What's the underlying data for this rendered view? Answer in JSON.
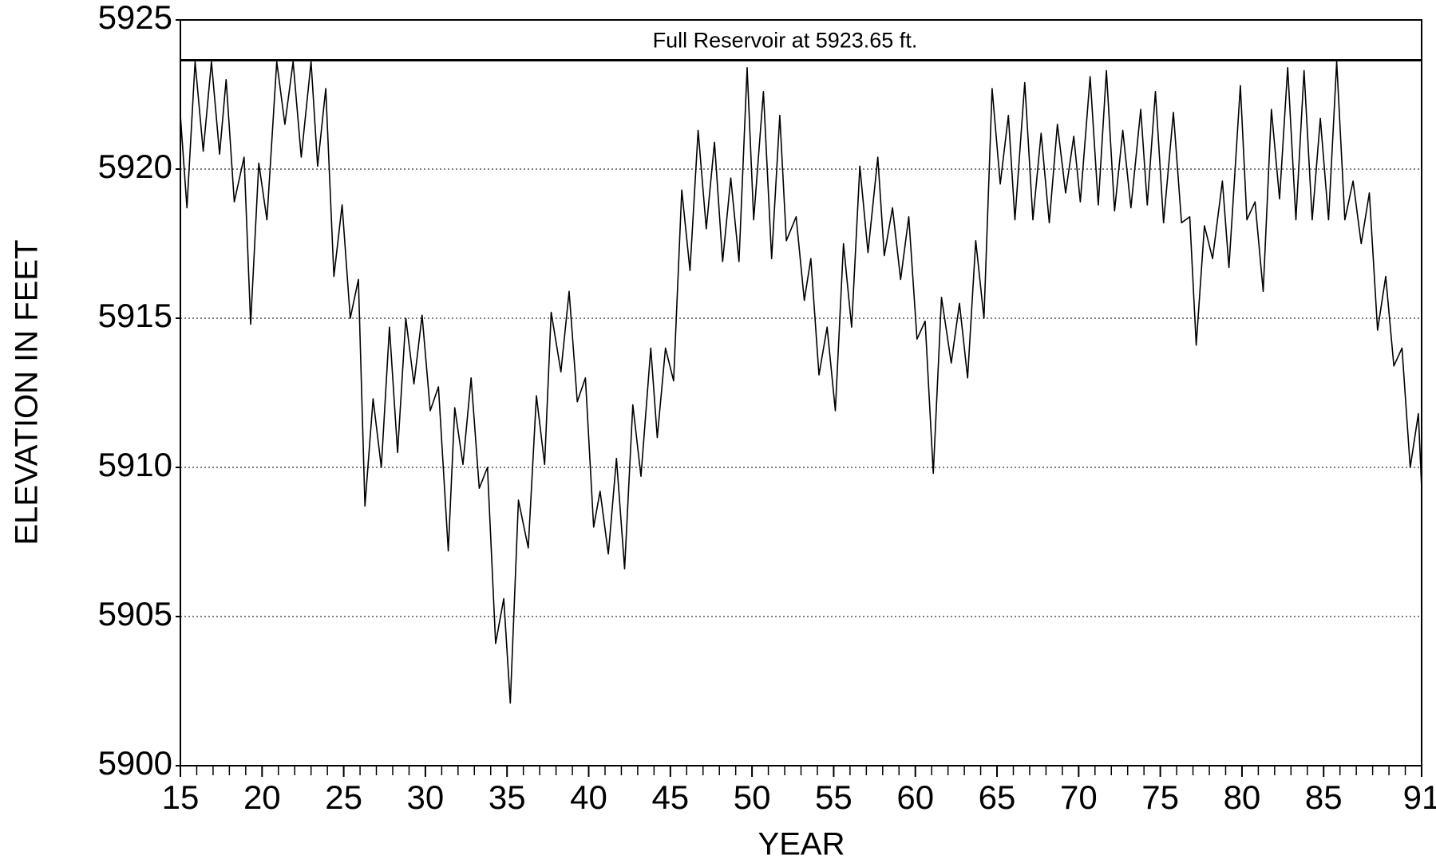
{
  "chart_data": {
    "type": "line",
    "xlabel": "YEAR",
    "ylabel": "ELEVATION IN FEET",
    "reference_line": {
      "value": 5923.65,
      "label": "Full Reservoir at 5923.65 ft."
    },
    "color": "#000000",
    "xlim": [
      15,
      91
    ],
    "ylim": [
      5900,
      5925
    ],
    "xticks": [
      15,
      20,
      25,
      30,
      35,
      40,
      45,
      50,
      55,
      60,
      65,
      70,
      75,
      80,
      85,
      91
    ],
    "xminor_ticks": [
      15,
      16,
      17,
      18,
      19,
      20,
      21,
      22,
      23,
      24,
      25,
      26,
      27,
      28,
      29,
      30,
      31,
      32,
      33,
      34,
      35,
      36,
      37,
      38,
      39,
      40,
      41,
      42,
      43,
      44,
      45,
      46,
      47,
      48,
      49,
      50,
      51,
      52,
      53,
      54,
      55,
      56,
      57,
      58,
      59,
      60,
      61,
      62,
      63,
      64,
      65,
      66,
      67,
      68,
      69,
      70,
      71,
      72,
      73,
      74,
      75,
      76,
      77,
      78,
      79,
      80,
      81,
      82,
      83,
      84,
      85,
      86,
      87,
      88,
      89,
      90,
      91
    ],
    "yticks": [
      5900,
      5905,
      5910,
      5915,
      5920,
      5925
    ],
    "grid": true,
    "x": [
      15.0,
      15.4,
      15.9,
      16.4,
      16.9,
      17.4,
      17.8,
      18.3,
      18.9,
      19.3,
      19.8,
      20.3,
      20.9,
      21.4,
      21.9,
      22.4,
      23.0,
      23.4,
      23.9,
      24.4,
      24.9,
      25.4,
      25.9,
      26.3,
      26.8,
      27.3,
      27.8,
      28.3,
      28.8,
      29.3,
      29.8,
      30.3,
      30.8,
      31.4,
      31.8,
      32.3,
      32.8,
      33.3,
      33.8,
      34.3,
      34.8,
      35.2,
      35.7,
      36.3,
      36.8,
      37.3,
      37.7,
      38.3,
      38.8,
      39.3,
      39.8,
      40.3,
      40.7,
      41.2,
      41.7,
      42.2,
      42.7,
      43.2,
      43.8,
      44.2,
      44.7,
      45.2,
      45.7,
      46.2,
      46.7,
      47.2,
      47.7,
      48.2,
      48.7,
      49.2,
      49.7,
      50.1,
      50.7,
      51.2,
      51.7,
      52.1,
      52.7,
      53.2,
      53.6,
      54.1,
      54.6,
      55.1,
      55.6,
      56.1,
      56.6,
      57.1,
      57.7,
      58.1,
      58.6,
      59.1,
      59.6,
      60.1,
      60.6,
      61.1,
      61.6,
      62.2,
      62.7,
      63.2,
      63.7,
      64.2,
      64.7,
      65.2,
      65.7,
      66.1,
      66.7,
      67.2,
      67.7,
      68.2,
      68.7,
      69.2,
      69.7,
      70.1,
      70.7,
      71.2,
      71.7,
      72.2,
      72.7,
      73.2,
      73.8,
      74.2,
      74.7,
      75.2,
      75.8,
      76.3,
      76.8,
      77.2,
      77.7,
      78.2,
      78.8,
      79.2,
      79.9,
      80.3,
      80.8,
      81.3,
      81.8,
      82.3,
      82.8,
      83.3,
      83.8,
      84.3,
      84.8,
      85.3,
      85.8,
      86.3,
      86.8,
      87.3,
      87.8,
      88.3,
      88.8,
      89.3,
      89.8,
      90.3,
      90.8,
      91.0
    ],
    "values": [
      5921.8,
      5918.7,
      5923.6,
      5920.6,
      5923.6,
      5920.5,
      5923.0,
      5918.9,
      5920.4,
      5914.8,
      5920.2,
      5918.3,
      5923.6,
      5921.5,
      5923.6,
      5920.4,
      5923.6,
      5920.1,
      5922.7,
      5916.4,
      5918.8,
      5915.0,
      5916.3,
      5908.7,
      5912.3,
      5910.0,
      5914.7,
      5910.5,
      5915.0,
      5912.8,
      5915.1,
      5911.9,
      5912.7,
      5907.2,
      5912.0,
      5910.1,
      5913.0,
      5909.3,
      5910.0,
      5904.1,
      5905.6,
      5902.1,
      5908.9,
      5907.3,
      5912.4,
      5910.1,
      5915.2,
      5913.2,
      5915.9,
      5912.2,
      5913.0,
      5908.0,
      5909.2,
      5907.1,
      5910.3,
      5906.6,
      5912.1,
      5909.7,
      5914.0,
      5911.0,
      5914.0,
      5912.9,
      5919.3,
      5916.6,
      5921.3,
      5918.0,
      5920.9,
      5916.9,
      5919.7,
      5916.9,
      5923.4,
      5918.3,
      5922.6,
      5917.0,
      5921.8,
      5917.6,
      5918.4,
      5915.6,
      5917.0,
      5913.1,
      5914.7,
      5911.9,
      5917.5,
      5914.7,
      5920.1,
      5917.2,
      5920.4,
      5917.1,
      5918.7,
      5916.3,
      5918.4,
      5914.3,
      5914.9,
      5909.8,
      5915.7,
      5913.5,
      5915.5,
      5913.0,
      5917.6,
      5915.0,
      5922.7,
      5919.5,
      5921.8,
      5918.3,
      5922.9,
      5918.3,
      5921.2,
      5918.2,
      5921.5,
      5919.2,
      5921.1,
      5918.9,
      5923.1,
      5918.8,
      5923.3,
      5918.6,
      5921.3,
      5918.7,
      5922.0,
      5918.8,
      5922.6,
      5918.2,
      5921.9,
      5918.2,
      5918.4,
      5914.1,
      5918.1,
      5917.0,
      5919.6,
      5916.7,
      5922.8,
      5918.3,
      5918.9,
      5915.9,
      5922.0,
      5919.0,
      5923.4,
      5918.3,
      5923.3,
      5918.3,
      5921.7,
      5918.3,
      5923.6,
      5918.3,
      5919.6,
      5917.5,
      5919.2,
      5914.6,
      5916.4,
      5913.4,
      5914.0,
      5910.0,
      5911.8,
      5909.3
    ]
  }
}
